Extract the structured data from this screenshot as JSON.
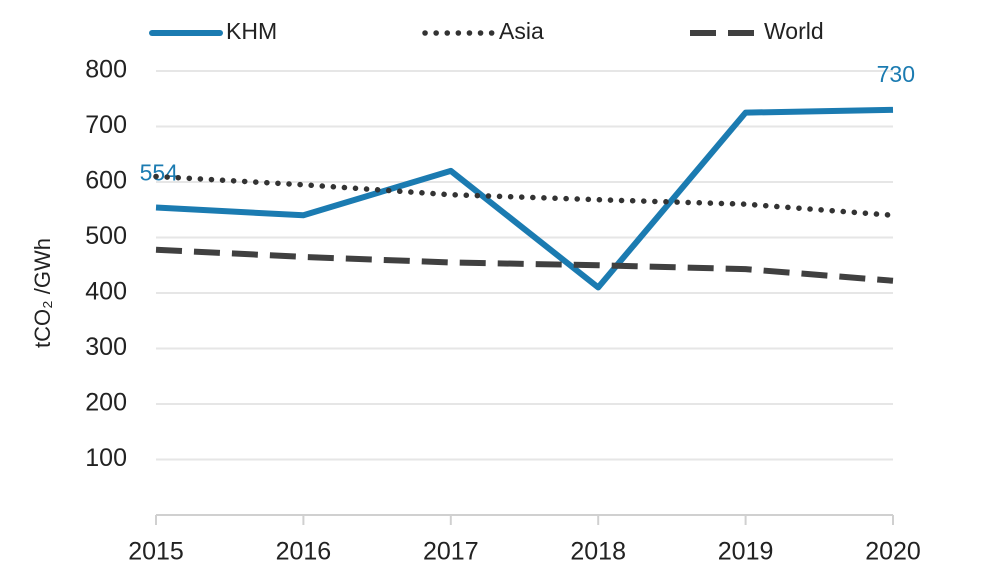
{
  "chart_data": {
    "type": "line",
    "y_label": "tCO₂ /GWh",
    "categories": [
      "2015",
      "2016",
      "2017",
      "2018",
      "2019",
      "2020"
    ],
    "series": [
      {
        "name": "KHM",
        "color": "#1b7bb1",
        "style": "solid",
        "values": [
          554,
          540,
          620,
          410,
          725,
          730
        ],
        "value_labels": [
          "554",
          null,
          null,
          null,
          null,
          "730"
        ]
      },
      {
        "name": "Asia",
        "color": "#333333",
        "style": "dotted",
        "values": [
          610,
          595,
          577,
          568,
          560,
          540
        ]
      },
      {
        "name": "World",
        "color": "#404040",
        "style": "dashed",
        "values": [
          478,
          465,
          455,
          450,
          443,
          422
        ]
      }
    ],
    "ylim": [
      0,
      800
    ],
    "yticks": [
      100,
      200,
      300,
      400,
      500,
      600,
      700,
      800
    ],
    "grid": true
  }
}
